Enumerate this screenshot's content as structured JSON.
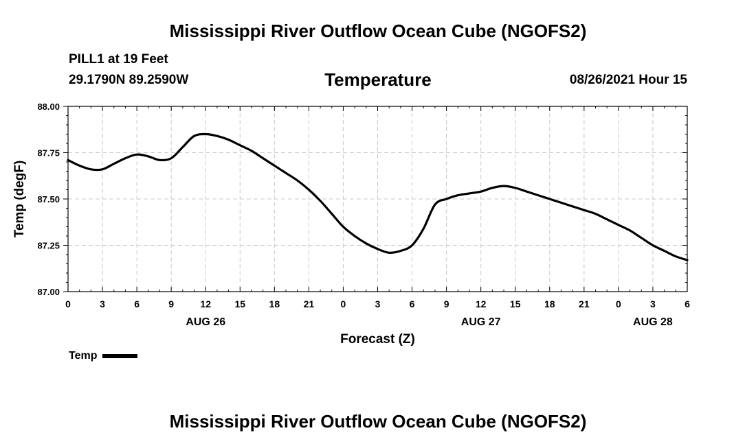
{
  "header": {
    "main_title": "Mississippi River Outflow Ocean Cube (NGOFS2)",
    "station_name": "PILL1 at 19 Feet",
    "coordinates": "29.1790N  89.2590W",
    "chart_title": "Temperature",
    "run_time": "08/26/2021 Hour 15"
  },
  "footer": {
    "main_title": "Mississippi River Outflow Ocean Cube (NGOFS2)"
  },
  "legend": {
    "label": "Temp"
  },
  "colors": {
    "line": "#000000",
    "grid": "#c8c8c8",
    "background": "#ffffff"
  },
  "chart_data": {
    "type": "line",
    "title": "Temperature",
    "xlabel": "Forecast (Z)",
    "ylabel": "Temp (degF)",
    "xlim": [
      0,
      54
    ],
    "ylim": [
      87.0,
      88.0
    ],
    "grid": true,
    "x_ticks": [
      0,
      3,
      6,
      9,
      12,
      15,
      18,
      21,
      24,
      27,
      30,
      33,
      36,
      39,
      42,
      45,
      48,
      51,
      54
    ],
    "x_tick_labels": [
      "0",
      "3",
      "6",
      "9",
      "12",
      "15",
      "18",
      "21",
      "0",
      "3",
      "6",
      "9",
      "12",
      "15",
      "18",
      "21",
      "0",
      "3",
      "6"
    ],
    "y_ticks": [
      87.0,
      87.25,
      87.5,
      87.75,
      88.0
    ],
    "y_tick_labels": [
      "87.00",
      "87.25",
      "87.50",
      "87.75",
      "88.00"
    ],
    "date_labels": [
      {
        "x": 12,
        "label": "AUG 26"
      },
      {
        "x": 36,
        "label": "AUG 27"
      },
      {
        "x": 51,
        "label": "AUG 28"
      }
    ],
    "series": [
      {
        "name": "Temp",
        "x": [
          0,
          1,
          2,
          3,
          4,
          5,
          6,
          7,
          8,
          9,
          10,
          11,
          12,
          13,
          14,
          15,
          16,
          17,
          18,
          19,
          20,
          21,
          22,
          23,
          24,
          25,
          26,
          27,
          28,
          29,
          30,
          31,
          32,
          33,
          34,
          35,
          36,
          37,
          38,
          39,
          40,
          41,
          42,
          43,
          44,
          45,
          46,
          47,
          48,
          49,
          50,
          51,
          52,
          53,
          54
        ],
        "values": [
          87.71,
          87.68,
          87.66,
          87.66,
          87.69,
          87.72,
          87.74,
          87.73,
          87.71,
          87.72,
          87.78,
          87.84,
          87.85,
          87.84,
          87.82,
          87.79,
          87.76,
          87.72,
          87.68,
          87.64,
          87.6,
          87.55,
          87.49,
          87.42,
          87.35,
          87.3,
          87.26,
          87.23,
          87.21,
          87.22,
          87.25,
          87.34,
          87.47,
          87.5,
          87.52,
          87.53,
          87.54,
          87.56,
          87.57,
          87.56,
          87.54,
          87.52,
          87.5,
          87.48,
          87.46,
          87.44,
          87.42,
          87.39,
          87.36,
          87.33,
          87.29,
          87.25,
          87.22,
          87.19,
          87.17
        ]
      }
    ]
  }
}
